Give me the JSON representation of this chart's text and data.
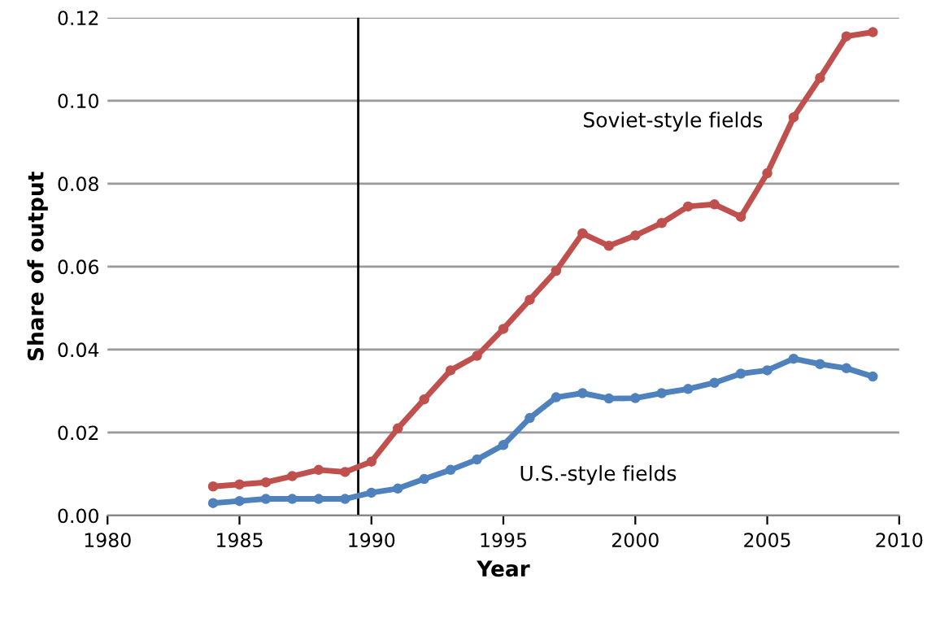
{
  "chart_data": {
    "type": "line",
    "xlabel": "Year",
    "ylabel": "Share of output",
    "xlim": [
      1980,
      2010
    ],
    "xticks": [
      1980,
      1985,
      1990,
      1995,
      2000,
      2005,
      2010
    ],
    "ylim": [
      0,
      0.12
    ],
    "yticks": [
      {
        "value": 0,
        "label": "0.00"
      },
      {
        "value": 0.02,
        "label": "0.02"
      },
      {
        "value": 0.04,
        "label": "0.04"
      },
      {
        "value": 0.06,
        "label": "0.06"
      },
      {
        "value": 0.08,
        "label": "0.08"
      },
      {
        "value": 0.1,
        "label": "0.10"
      },
      {
        "value": 0.12,
        "label": "0.12"
      }
    ],
    "grid": "y",
    "marker": "circle",
    "line_style": "solid",
    "legend": false,
    "x": [
      1984,
      1985,
      1986,
      1987,
      1988,
      1989,
      1990,
      1991,
      1992,
      1993,
      1994,
      1995,
      1996,
      1997,
      1998,
      1999,
      2000,
      2001,
      2002,
      2003,
      2004,
      2005,
      2006,
      2007,
      2008,
      2009
    ],
    "series": [
      {
        "name": "Soviet-style fields",
        "color": "#c0504d",
        "values": [
          0.007,
          0.0075,
          0.008,
          0.0095,
          0.011,
          0.0105,
          0.013,
          0.021,
          0.028,
          0.035,
          0.0385,
          0.045,
          0.052,
          0.059,
          0.068,
          0.065,
          0.0675,
          0.0705,
          0.0745,
          0.075,
          0.072,
          0.0825,
          0.096,
          0.1055,
          0.1155,
          0.1165
        ]
      },
      {
        "name": "U.S.-style fields",
        "color": "#4f81bd",
        "values": [
          0.003,
          0.0035,
          0.004,
          0.004,
          0.004,
          0.004,
          0.0055,
          0.0065,
          0.0088,
          0.011,
          0.0135,
          0.017,
          0.0235,
          0.0285,
          0.0295,
          0.0282,
          0.0283,
          0.0295,
          0.0305,
          0.032,
          0.0342,
          0.035,
          0.0378,
          0.0365,
          0.0355,
          0.0335
        ]
      }
    ],
    "ref_lines": [
      {
        "axis": "x",
        "value": 1989.5,
        "color": "#000000",
        "line_style": "solid"
      }
    ]
  }
}
